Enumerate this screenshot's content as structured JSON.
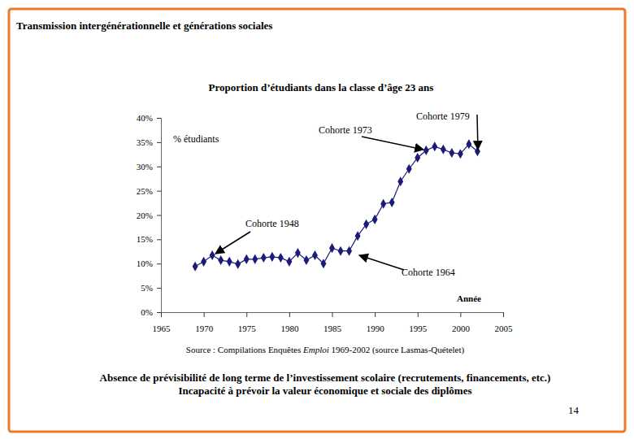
{
  "header": "Transmission intergénérationnelle et générations sociales",
  "chart_data": {
    "type": "line",
    "title": "Proportion d’étudiants dans la classe d’âge 23 ans",
    "xlabel": "Année",
    "x": [
      1969,
      1970,
      1971,
      1972,
      1973,
      1974,
      1975,
      1976,
      1977,
      1978,
      1979,
      1980,
      1981,
      1982,
      1983,
      1984,
      1985,
      1986,
      1987,
      1988,
      1989,
      1990,
      1991,
      1992,
      1993,
      1994,
      1995,
      1996,
      1997,
      1998,
      1999,
      2000,
      2001,
      2002
    ],
    "series": [
      {
        "name": "% étudiants",
        "color": "#1c1c78",
        "marker": "diamond",
        "line_style": "solid",
        "values": [
          9.4,
          10.4,
          11.7,
          10.7,
          10.4,
          9.9,
          10.9,
          10.9,
          11.2,
          11.4,
          11.2,
          10.4,
          12.2,
          10.7,
          11.7,
          10.0,
          13.2,
          12.6,
          12.6,
          15.7,
          18.1,
          19.1,
          22.3,
          22.6,
          26.9,
          29.5,
          31.8,
          33.3,
          34.1,
          33.5,
          32.8,
          32.6,
          34.6,
          33.1
        ]
      }
    ],
    "xlim": [
      1965,
      2005
    ],
    "xticks": [
      1965,
      1970,
      1975,
      1980,
      1985,
      1990,
      1995,
      2000,
      2005
    ],
    "ylim": [
      0,
      40
    ],
    "yticks": [
      {
        "value": 0,
        "label": "0%"
      },
      {
        "value": 5,
        "label": "5%"
      },
      {
        "value": 10,
        "label": "10%"
      },
      {
        "value": 15,
        "label": "15%"
      },
      {
        "value": 20,
        "label": "20%"
      },
      {
        "value": 25,
        "label": "25%"
      },
      {
        "value": 30,
        "label": "30%"
      },
      {
        "value": 35,
        "label": "35%"
      },
      {
        "value": 40,
        "label": "40%"
      }
    ],
    "grid": false,
    "legend": "top-left",
    "annotations": [
      "Cohorte 1979",
      "Cohorte 1973",
      "Cohorte 1948",
      "Cohorte 1964"
    ],
    "source": [
      "Source : Compilations Enquêtes ",
      "Emploi",
      " 1969-2002 (source Lasmas-Quételet)"
    ]
  },
  "footer": [
    "Absence de prévisibilité de long terme de l’investissement scolaire (recrutements, financements, etc.)",
    "Incapacité à prévoir la valeur économique et sociale des diplômes"
  ],
  "page_number": 14
}
